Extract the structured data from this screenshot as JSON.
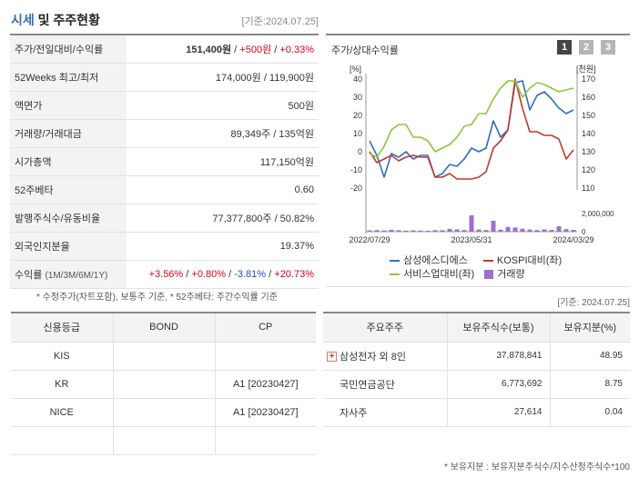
{
  "header": {
    "title_accent": "시세",
    "title_rest": " 및 주주현황",
    "date": "[기준:2024.07.25]"
  },
  "info_rows": [
    {
      "label": "주가/전일대비/수익률"
    },
    {
      "label": "52Weeks 최고/최저",
      "value": "174,000원 / 119,900원"
    },
    {
      "label": "액면가",
      "value": "500원"
    },
    {
      "label": "거래량/거래대금",
      "value": "89,349주 / 135억원"
    },
    {
      "label": "시가총액",
      "value": "117,150억원"
    },
    {
      "label": "52주베타",
      "value": "0.60"
    },
    {
      "label": "발행주식수/유동비율",
      "value": "77,377,800주 / 50.82%"
    },
    {
      "label": "외국인지분율",
      "value": "19.37%"
    },
    {
      "label_main": "수익률",
      "label_sub": "(1M/3M/6M/1Y)"
    }
  ],
  "price": {
    "value": "151,400원",
    "sep1": " / ",
    "change": "+500원",
    "sep2": " / ",
    "rate": "+0.33%"
  },
  "returns": {
    "r1m": "+3.56%",
    "r3m": "+0.80%",
    "r6m": "-3.81%",
    "r1y": "+20.73%",
    "sep": "/ "
  },
  "footnote_left": "* 수정주가(차트포함), 보통주 기준, * 52주베타: 주간수익률 기준",
  "chart_panel": {
    "title": "주가/상대수익률",
    "pages": [
      "1",
      "2",
      "3"
    ],
    "legend": {
      "samsung": "삼성에스디에스",
      "kospi": "KOSPI대비(좌)",
      "service": "서비스업대비(좌)",
      "volume": "거래량"
    }
  },
  "chart_data": {
    "type": "line",
    "x_tick_labels": [
      "2022/07/29",
      "2023/05/31",
      "2024/03/29"
    ],
    "left_axis": {
      "unit": "[%]",
      "ticks": [
        40,
        30,
        20,
        10,
        0,
        -10,
        -20
      ],
      "ylim": [
        -20,
        40
      ]
    },
    "right_axis": {
      "unit": "[천원]",
      "ticks": [
        170,
        160,
        150,
        140,
        130,
        120,
        110
      ],
      "ylim": [
        110,
        170
      ]
    },
    "volume_axis": {
      "ticks": [
        "2,000,000",
        "0"
      ],
      "ylim": [
        0,
        2000000
      ]
    },
    "n_points": 29,
    "series": [
      {
        "name": "삼성에스디에스",
        "axis": "right",
        "color": "#2f6fbd",
        "values": [
          136,
          128,
          116,
          129,
          127,
          130,
          126,
          128,
          128,
          116,
          118,
          123,
          122,
          126,
          132,
          130,
          132,
          147,
          138,
          142,
          168,
          169,
          153,
          161,
          163,
          159,
          154,
          151,
          153
        ]
      },
      {
        "name": "KOSPI대비(좌)",
        "axis": "left",
        "color": "#c0392b",
        "values": [
          0,
          -6,
          -4,
          -2,
          -5,
          -3,
          -2,
          -3,
          -3,
          -14,
          -14,
          -12,
          -15,
          -15,
          -15,
          -14,
          -11,
          2,
          6,
          12,
          40,
          24,
          11,
          11,
          9,
          9,
          7,
          -4,
          1
        ]
      },
      {
        "name": "서비스업대비(좌)",
        "axis": "left",
        "color": "#8ec63f",
        "values": [
          -1,
          -3,
          3,
          12,
          15,
          15,
          8,
          8,
          6,
          0,
          2,
          4,
          8,
          14,
          15,
          21,
          21,
          29,
          35,
          39,
          39,
          30,
          35,
          38,
          37,
          35,
          33,
          34,
          35
        ]
      },
      {
        "name": "거래량",
        "axis": "volume",
        "color": "#9d6fcf",
        "values": [
          150000,
          180000,
          140000,
          200000,
          160000,
          120000,
          150000,
          130000,
          110000,
          170000,
          160000,
          300000,
          250000,
          180000,
          1800000,
          240000,
          180000,
          1200000,
          220000,
          520000,
          460000,
          330000,
          240000,
          180000,
          250000,
          200000,
          600000,
          280000,
          200000
        ]
      }
    ],
    "grid": false,
    "legend_position": "bottom"
  },
  "date_right": "[기준: 2024.07.25]",
  "credit_table": {
    "headers": [
      "신용등급",
      "BOND",
      "CP"
    ],
    "rows": [
      [
        "KIS",
        "",
        ""
      ],
      [
        "KR",
        "",
        "A1 [20230427]"
      ],
      [
        "NICE",
        "",
        "A1 [20230427]"
      ],
      [
        "",
        "",
        ""
      ]
    ]
  },
  "holders_table": {
    "headers": [
      "주요주주",
      "보유주식수(보통)",
      "보유지분(%)"
    ],
    "rows": [
      [
        "삼성전자 외 8인",
        "37,878,841",
        "48.95"
      ],
      [
        "국민연금공단",
        "6,773,692",
        "8.75"
      ],
      [
        "자사주",
        "27,614",
        "0.04"
      ]
    ]
  },
  "footnote_right": "* 보유지분 : 보유지분주식수/지수산정주식수*100",
  "colors": {
    "accent": "#2f6fb3",
    "up": "#e0001b",
    "down": "#1a4fb8",
    "page_active": "#444444",
    "page_inactive": "#b5b5b5"
  }
}
